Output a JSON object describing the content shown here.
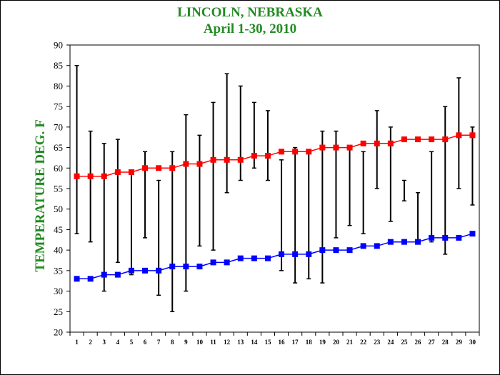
{
  "colors": {
    "title": "#228B22",
    "high_series": "#ff0000",
    "low_series": "#0000ff",
    "error_bar": "#000000"
  },
  "chart_data": {
    "type": "line",
    "title": "LINCOLN, NEBRASKA",
    "subtitle": "April 1-30, 2010",
    "xlabel": "",
    "ylabel": "TEMPERATURE DEG. F",
    "x": [
      1,
      2,
      3,
      4,
      5,
      6,
      7,
      8,
      9,
      10,
      11,
      12,
      13,
      14,
      15,
      16,
      17,
      18,
      19,
      20,
      21,
      22,
      23,
      24,
      25,
      26,
      27,
      28,
      29,
      30
    ],
    "ylim": [
      20,
      90
    ],
    "yticks": [
      20,
      25,
      30,
      35,
      40,
      45,
      50,
      55,
      60,
      65,
      70,
      75,
      80,
      85,
      90
    ],
    "grid": false,
    "legend": "none",
    "series": [
      {
        "color": "#ff0000",
        "marker": "square",
        "values": [
          58,
          58,
          58,
          59,
          59,
          60,
          60,
          60,
          61,
          61,
          62,
          62,
          62,
          63,
          63,
          64,
          64,
          64,
          65,
          65,
          65,
          66,
          66,
          66,
          67,
          67,
          67,
          67,
          68,
          68
        ],
        "range_max": [
          85,
          69,
          66,
          67,
          59,
          64,
          57,
          64,
          73,
          68,
          76,
          83,
          80,
          76,
          74,
          62,
          65,
          64,
          69,
          69,
          65,
          64,
          74,
          70,
          57,
          54,
          64,
          75,
          82,
          70
        ],
        "range_min": [
          44,
          42,
          30,
          37,
          34,
          43,
          29,
          25,
          30,
          41,
          40,
          54,
          57,
          60,
          57,
          35,
          32,
          33,
          32,
          43,
          46,
          44,
          55,
          47,
          52,
          42,
          42,
          39,
          55,
          51
        ]
      },
      {
        "color": "#0000ff",
        "marker": "square",
        "values": [
          33,
          33,
          34,
          34,
          35,
          35,
          35,
          36,
          36,
          36,
          37,
          37,
          38,
          38,
          38,
          39,
          39,
          39,
          40,
          40,
          40,
          41,
          41,
          42,
          42,
          42,
          43,
          43,
          43,
          44
        ]
      }
    ]
  }
}
